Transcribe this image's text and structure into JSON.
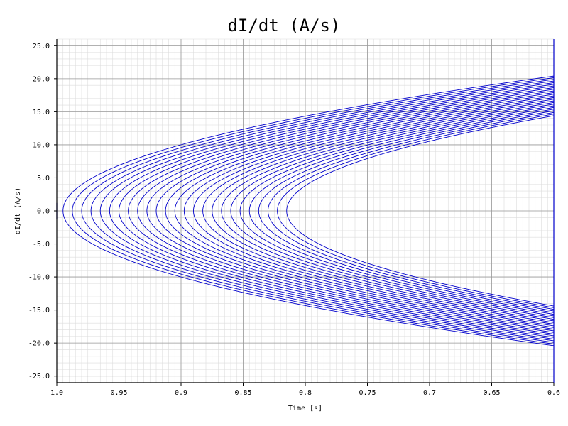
{
  "chart_data": {
    "type": "line",
    "title": "dI/dt (A/s)",
    "xlabel": "Time [s]",
    "ylabel": "dI/dt (A/s)",
    "xlim": [
      1.0,
      0.6
    ],
    "ylim": [
      -26,
      26
    ],
    "x_reversed": true,
    "grid": true,
    "minor_grid": true,
    "x_ticks": [
      1.0,
      0.95,
      0.9,
      0.85,
      0.8,
      0.75,
      0.7,
      0.65,
      0.6
    ],
    "x_tick_labels": [
      "1.0",
      "0.95",
      "0.9",
      "0.85",
      "0.8",
      "0.75",
      "0.7",
      "0.65",
      "0.6"
    ],
    "y_ticks": [
      25,
      20,
      15,
      10,
      5,
      0,
      -5,
      -10,
      -15,
      -20,
      -25
    ],
    "y_tick_labels": [
      "25.0",
      "20.0",
      "15.0",
      "10.0",
      "5.0",
      "0.0",
      "-5.0",
      "-10.0",
      "-15.0",
      "-20.0",
      "-25.0"
    ],
    "line_color": "#0000cc",
    "curve_family": {
      "shape": "sideways parabola opening toward decreasing time",
      "count": 25,
      "vertex_time_first": 0.995,
      "vertex_time_last": 0.815,
      "value_at_0.6_first": 20.4,
      "value_at_0.6_last": 14.4
    }
  }
}
